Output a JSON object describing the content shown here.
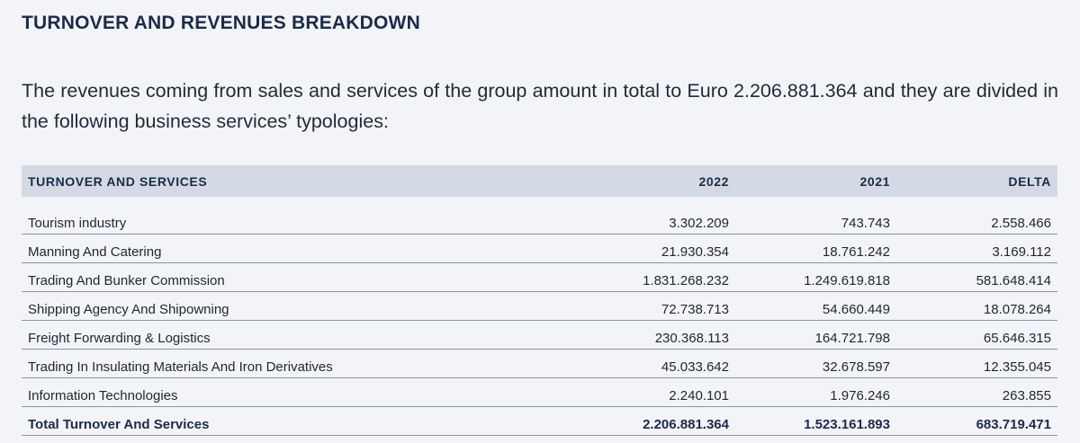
{
  "title": "TURNOVER AND REVENUES BREAKDOWN",
  "intro": "The revenues coming from sales and services of the group amount in total to Euro 2.206.881.364 and they are divided in the following business services’ typologies:",
  "table": {
    "headers": [
      "TURNOVER AND SERVICES",
      "2022",
      "2021",
      "DELTA"
    ],
    "rows": [
      [
        "Tourism industry",
        "3.302.209",
        "743.743",
        "2.558.466"
      ],
      [
        "Manning And Catering",
        "21.930.354",
        "18.761.242",
        "3.169.112"
      ],
      [
        "Trading And Bunker Commission",
        "1.831.268.232",
        "1.249.619.818",
        "581.648.414"
      ],
      [
        "Shipping Agency And Shipowning",
        "72.738.713",
        "54.660.449",
        "18.078.264"
      ],
      [
        "Freight Forwarding & Logistics",
        "230.368.113",
        "164.721.798",
        "65.646.315"
      ],
      [
        "Trading In Insulating Materials And Iron Derivatives",
        "45.033.642",
        "32.678.597",
        "12.355.045"
      ],
      [
        "Information Technologies",
        "2.240.101",
        "1.976.246",
        "263.855"
      ]
    ],
    "total": [
      "Total Turnover And Services",
      "2.206.881.364",
      "1.523.161.893",
      "683.719.471"
    ]
  }
}
